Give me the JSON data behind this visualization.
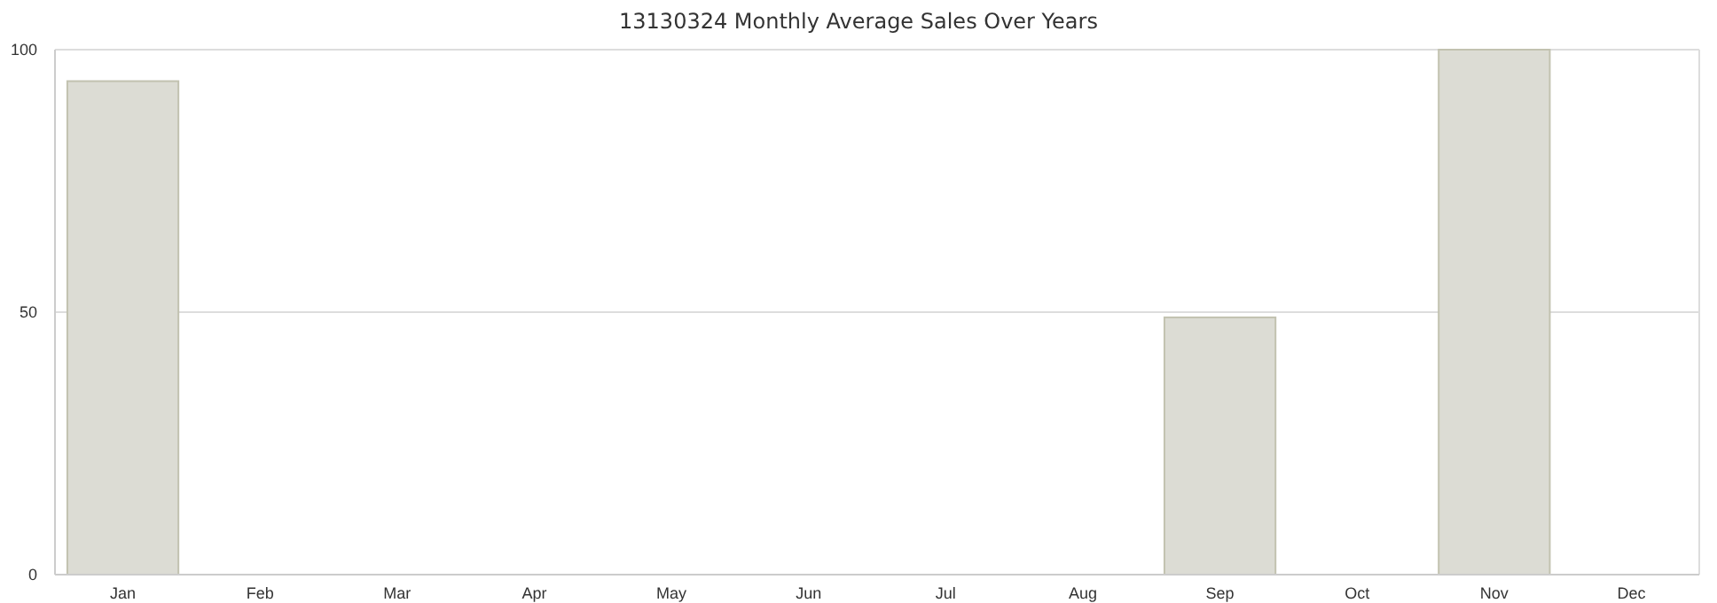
{
  "chart_data": {
    "type": "bar",
    "title": "13130324 Monthly Average Sales Over Years",
    "categories": [
      "Jan",
      "Feb",
      "Mar",
      "Apr",
      "May",
      "Jun",
      "Jul",
      "Aug",
      "Sep",
      "Oct",
      "Nov",
      "Dec"
    ],
    "values": [
      94,
      null,
      null,
      null,
      null,
      null,
      null,
      null,
      49,
      null,
      100,
      null
    ],
    "color": "#dcdcd4",
    "ylim": [
      0,
      100
    ],
    "yticks": [
      0,
      50,
      100
    ],
    "grid": "y"
  }
}
